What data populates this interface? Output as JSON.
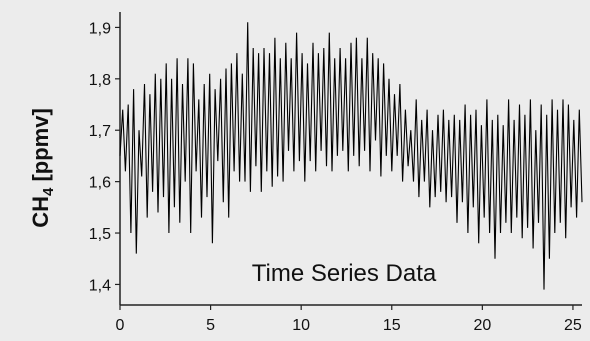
{
  "chart_data": {
    "type": "line",
    "title": "",
    "xlabel": "",
    "ylabel": "CH4 [ppmv]",
    "ylabel_main": "CH",
    "ylabel_sub": "4",
    "ylabel_rest": " [ppmv]",
    "annotation": "Time Series Data",
    "xlim": [
      0,
      25.5
    ],
    "ylim": [
      1.36,
      1.93
    ],
    "xticks": [
      0,
      5,
      10,
      15,
      20,
      25
    ],
    "yticks": [
      1.4,
      1.5,
      1.6,
      1.7,
      1.8,
      1.9
    ],
    "xtick_labels": [
      "0",
      "5",
      "10",
      "15",
      "20",
      "25"
    ],
    "ytick_labels": [
      "1,4",
      "1,5",
      "1,6",
      "1,7",
      "1,8",
      "1,9"
    ],
    "grid": false,
    "colors": {
      "line": "#000000",
      "axes": "#222222",
      "background": "#ececec"
    },
    "series": [
      {
        "segments": [
          [
            0.0,
            1.65
          ],
          [
            0.15,
            1.74
          ],
          [
            0.3,
            1.62
          ],
          [
            0.45,
            1.75
          ],
          [
            0.6,
            1.5
          ],
          [
            0.75,
            1.78
          ],
          [
            0.9,
            1.46
          ],
          [
            1.05,
            1.7
          ],
          [
            1.2,
            1.61
          ],
          [
            1.35,
            1.79
          ],
          [
            1.5,
            1.53
          ],
          [
            1.65,
            1.77
          ],
          [
            1.8,
            1.58
          ],
          [
            1.95,
            1.81
          ],
          [
            2.1,
            1.54
          ],
          [
            2.25,
            1.8
          ],
          [
            2.4,
            1.57
          ],
          [
            2.55,
            1.83
          ],
          [
            2.7,
            1.5
          ],
          [
            2.85,
            1.8
          ],
          [
            3.0,
            1.55
          ],
          [
            3.15,
            1.84
          ],
          [
            3.3,
            1.52
          ],
          [
            3.45,
            1.79
          ],
          [
            3.6,
            1.6
          ],
          [
            3.75,
            1.84
          ],
          [
            3.9,
            1.5
          ],
          [
            4.05,
            1.83
          ],
          [
            4.2,
            1.62
          ],
          [
            4.35,
            1.76
          ],
          [
            4.5,
            1.53
          ],
          [
            4.65,
            1.79
          ],
          [
            4.8,
            1.57
          ],
          [
            4.95,
            1.81
          ],
          [
            5.1,
            1.48
          ],
          [
            5.25,
            1.78
          ],
          [
            5.4,
            1.64
          ],
          [
            5.55,
            1.8
          ],
          [
            5.7,
            1.56
          ],
          [
            5.85,
            1.82
          ],
          [
            6.0,
            1.53
          ],
          [
            6.15,
            1.83
          ],
          [
            6.3,
            1.62
          ],
          [
            6.45,
            1.85
          ],
          [
            6.6,
            1.6
          ],
          [
            6.75,
            1.81
          ],
          [
            6.9,
            1.6
          ],
          [
            7.05,
            1.91
          ],
          [
            7.2,
            1.58
          ],
          [
            7.35,
            1.86
          ],
          [
            7.5,
            1.63
          ],
          [
            7.65,
            1.85
          ],
          [
            7.8,
            1.58
          ],
          [
            7.95,
            1.86
          ],
          [
            8.1,
            1.62
          ],
          [
            8.25,
            1.85
          ],
          [
            8.4,
            1.59
          ],
          [
            8.55,
            1.88
          ],
          [
            8.7,
            1.61
          ],
          [
            8.85,
            1.84
          ],
          [
            9.0,
            1.6
          ],
          [
            9.15,
            1.87
          ],
          [
            9.3,
            1.66
          ],
          [
            9.45,
            1.84
          ],
          [
            9.6,
            1.62
          ],
          [
            9.75,
            1.89
          ],
          [
            9.9,
            1.64
          ],
          [
            10.05,
            1.85
          ],
          [
            10.2,
            1.6
          ],
          [
            10.35,
            1.83
          ],
          [
            10.5,
            1.64
          ],
          [
            10.65,
            1.87
          ],
          [
            10.8,
            1.62
          ],
          [
            10.95,
            1.85
          ],
          [
            11.1,
            1.66
          ],
          [
            11.25,
            1.86
          ],
          [
            11.4,
            1.63
          ],
          [
            11.55,
            1.89
          ],
          [
            11.7,
            1.62
          ],
          [
            11.85,
            1.84
          ],
          [
            12.0,
            1.65
          ],
          [
            12.15,
            1.86
          ],
          [
            12.3,
            1.66
          ],
          [
            12.45,
            1.84
          ],
          [
            12.6,
            1.62
          ],
          [
            12.75,
            1.87
          ],
          [
            12.9,
            1.65
          ],
          [
            13.05,
            1.88
          ],
          [
            13.2,
            1.63
          ],
          [
            13.35,
            1.84
          ],
          [
            13.5,
            1.66
          ],
          [
            13.65,
            1.88
          ],
          [
            13.8,
            1.62
          ],
          [
            13.95,
            1.85
          ],
          [
            14.1,
            1.68
          ],
          [
            14.25,
            1.84
          ],
          [
            14.4,
            1.61
          ],
          [
            14.55,
            1.83
          ],
          [
            14.7,
            1.65
          ],
          [
            14.85,
            1.8
          ],
          [
            15.0,
            1.62
          ],
          [
            15.15,
            1.77
          ],
          [
            15.3,
            1.65
          ],
          [
            15.45,
            1.79
          ],
          [
            15.6,
            1.6
          ],
          [
            15.75,
            1.74
          ],
          [
            15.9,
            1.63
          ],
          [
            16.05,
            1.7
          ],
          [
            16.2,
            1.6
          ],
          [
            16.35,
            1.76
          ],
          [
            16.5,
            1.57
          ],
          [
            16.65,
            1.72
          ],
          [
            16.8,
            1.6
          ],
          [
            16.95,
            1.74
          ],
          [
            17.1,
            1.55
          ],
          [
            17.25,
            1.7
          ],
          [
            17.4,
            1.57
          ],
          [
            17.55,
            1.73
          ],
          [
            17.7,
            1.58
          ],
          [
            17.85,
            1.74
          ],
          [
            18.0,
            1.56
          ],
          [
            18.15,
            1.72
          ],
          [
            18.3,
            1.57
          ],
          [
            18.45,
            1.73
          ],
          [
            18.6,
            1.52
          ],
          [
            18.75,
            1.72
          ],
          [
            18.9,
            1.56
          ],
          [
            19.05,
            1.75
          ],
          [
            19.2,
            1.5
          ],
          [
            19.35,
            1.73
          ],
          [
            19.5,
            1.55
          ],
          [
            19.65,
            1.74
          ],
          [
            19.8,
            1.48
          ],
          [
            19.95,
            1.71
          ],
          [
            20.1,
            1.53
          ],
          [
            20.25,
            1.76
          ],
          [
            20.4,
            1.5
          ],
          [
            20.55,
            1.72
          ],
          [
            20.7,
            1.45
          ],
          [
            20.85,
            1.73
          ],
          [
            21.0,
            1.5
          ],
          [
            21.15,
            1.71
          ],
          [
            21.3,
            1.52
          ],
          [
            21.45,
            1.76
          ],
          [
            21.6,
            1.5
          ],
          [
            21.75,
            1.72
          ],
          [
            21.9,
            1.53
          ],
          [
            22.05,
            1.75
          ],
          [
            22.2,
            1.49
          ],
          [
            22.35,
            1.73
          ],
          [
            22.5,
            1.51
          ],
          [
            22.65,
            1.76
          ],
          [
            22.8,
            1.47
          ],
          [
            22.95,
            1.7
          ],
          [
            23.1,
            1.52
          ],
          [
            23.25,
            1.75
          ],
          [
            23.4,
            1.39
          ],
          [
            23.55,
            1.73
          ],
          [
            23.7,
            1.45
          ],
          [
            23.85,
            1.76
          ],
          [
            24.0,
            1.5
          ],
          [
            24.15,
            1.74
          ],
          [
            24.3,
            1.52
          ],
          [
            24.45,
            1.76
          ],
          [
            24.6,
            1.49
          ],
          [
            24.75,
            1.75
          ],
          [
            24.9,
            1.55
          ],
          [
            25.05,
            1.72
          ],
          [
            25.2,
            1.53
          ],
          [
            25.35,
            1.74
          ],
          [
            25.5,
            1.56
          ]
        ]
      }
    ]
  }
}
